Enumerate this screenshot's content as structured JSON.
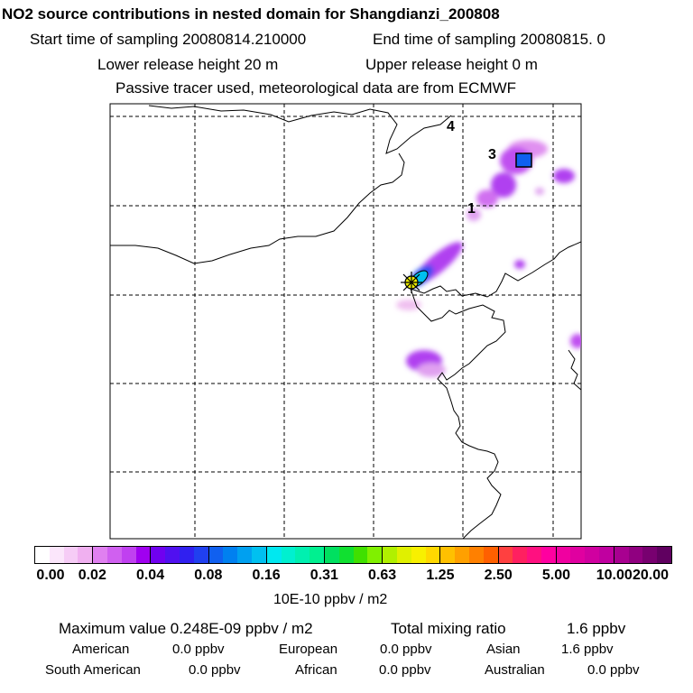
{
  "header": {
    "title": "NO2 source contributions in nested domain for Shangdianzi_200808",
    "start_time": "Start time of sampling 20080814.210000",
    "end_time": "End time of sampling 20080815.     0",
    "lower_height": "Lower release height   20 m",
    "upper_height": "Upper release height    0 m",
    "tracer_note": "Passive tracer used, meteorological data are from ECMWF"
  },
  "map": {
    "labels": [
      "4",
      "3",
      "1"
    ],
    "station_name": "Shangdianzi"
  },
  "colorbar": {
    "ticks": [
      "0.00",
      "0.02",
      "0.04",
      "0.08",
      "0.16",
      "0.31",
      "0.63",
      "1.25",
      "2.50",
      "5.00",
      "10.00",
      "20.00"
    ],
    "unit": "10E-10 ppbv / m2",
    "colors": [
      "#ffffff",
      "#fbe6fb",
      "#f6ccf6",
      "#f0b0f0",
      "#e080f0",
      "#d060f0",
      "#c040f0",
      "#a000f0",
      "#7000f0",
      "#5010f0",
      "#3020f0",
      "#2040f0",
      "#1060f0",
      "#0080f0",
      "#00a0f0",
      "#00c0f0",
      "#00e8f0",
      "#00f0d0",
      "#00f0b0",
      "#00f090",
      "#00e060",
      "#10e030",
      "#40e000",
      "#80f000",
      "#b0f000",
      "#e0f000",
      "#f8f000",
      "#ffd800",
      "#ffc000",
      "#ffa000",
      "#ff8000",
      "#ff6000",
      "#ff4040",
      "#ff2060",
      "#ff1080",
      "#ff00a0",
      "#f000a0",
      "#e000a0",
      "#d000a0",
      "#c000a0",
      "#a80090",
      "#900080",
      "#780070",
      "#600060"
    ]
  },
  "summary": {
    "max_value": "Maximum value  0.248E-09 ppbv / m2",
    "total_mixing": "Total mixing ratio",
    "total_value": "1.6 ppbv",
    "regions": [
      {
        "name": "American",
        "value": "0.0 ppbv"
      },
      {
        "name": "European",
        "value": "0.0 ppbv"
      },
      {
        "name": "Asian",
        "value": "1.6 ppbv"
      },
      {
        "name": "South American",
        "value": "0.0 ppbv"
      },
      {
        "name": "African",
        "value": "0.0 ppbv"
      },
      {
        "name": "Australian",
        "value": "0.0 ppbv"
      }
    ]
  }
}
